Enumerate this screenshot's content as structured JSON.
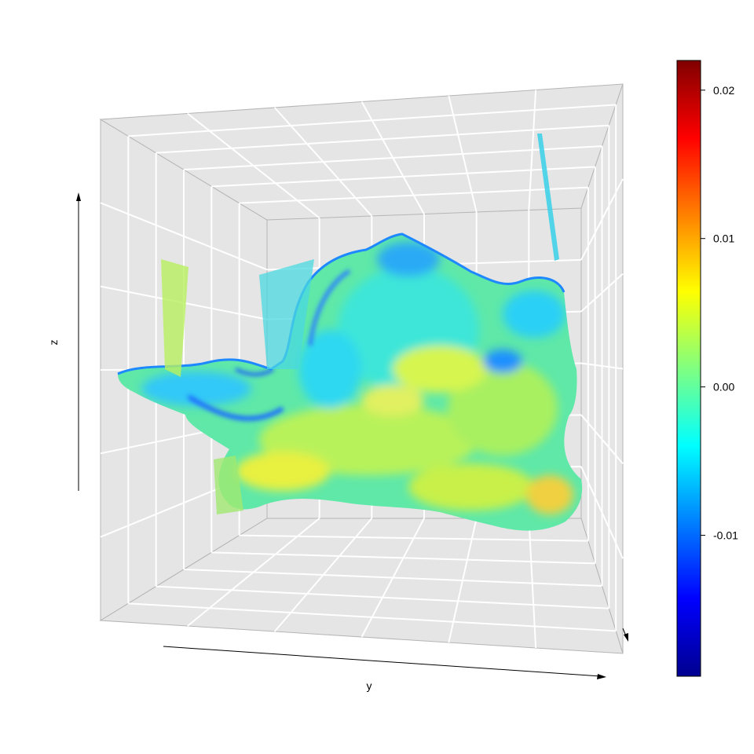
{
  "chart_data": {
    "type": "3d-point-cloud",
    "title": "",
    "xlabel": "",
    "ylabel": "y",
    "zlabel": "z",
    "view": "perspective box, y axis running left to right along the bottom, z axis vertical on the left",
    "grid": true,
    "panel_color": "#e5e5e5",
    "grid_color": "#ffffff",
    "colorbar": {
      "palette": "jet",
      "colors": [
        "#00008f",
        "#0000ff",
        "#0080ff",
        "#00ffff",
        "#80ff80",
        "#ffff00",
        "#ff8000",
        "#ff0000",
        "#800000"
      ],
      "range": [
        -0.0195,
        0.022
      ],
      "ticks": [
        -0.01,
        0.0,
        0.01,
        0.02
      ],
      "tick_labels": [
        "-0.01",
        "0.00",
        "0.01",
        "0.02"
      ]
    }
  }
}
